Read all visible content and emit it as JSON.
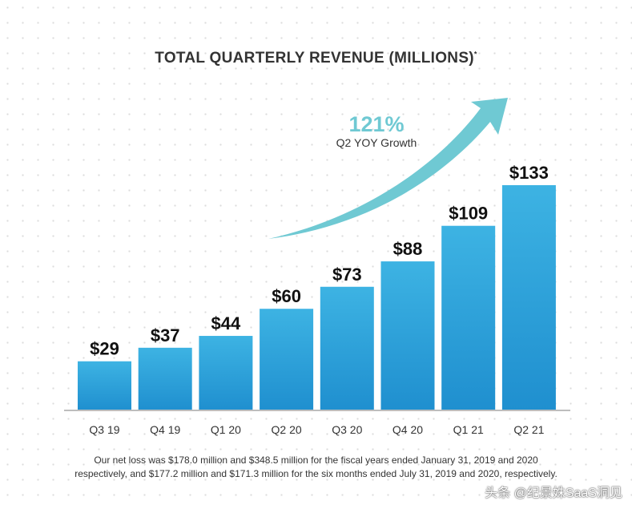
{
  "chart_data": {
    "type": "bar",
    "title": "TOTAL QUARTERLY REVENUE (MILLIONS)",
    "title_marker": "*",
    "categories": [
      "Q3 19",
      "Q4 19",
      "Q1 20",
      "Q2 20",
      "Q3 20",
      "Q4 20",
      "Q1 21",
      "Q2 21"
    ],
    "values": [
      29,
      37,
      44,
      60,
      73,
      88,
      109,
      133
    ],
    "data_labels": [
      "$29",
      "$37",
      "$44",
      "$60",
      "$73",
      "$88",
      "$109",
      "$133"
    ],
    "xlabel": "",
    "ylabel": "",
    "ylim": [
      0,
      133
    ],
    "grid": false,
    "annotation": {
      "value": "121%",
      "label": "Q2 YOY Growth"
    },
    "colors": {
      "bar_top": "#3db3e3",
      "bar_bottom": "#1f8fcf",
      "arrow": "#6fc9d3",
      "axis": "#bdbdbd"
    }
  },
  "footnote": {
    "line1": "Our net loss was $178.0 million and $348.5 million for the fiscal years ended January 31, 2019 and 2020",
    "line2": "respectively, and $177.2 million and $171.3 million for the six months ended July 31, 2019 and 2020, respectively."
  },
  "watermark": "头条 @纪景姝SaaS洞见"
}
